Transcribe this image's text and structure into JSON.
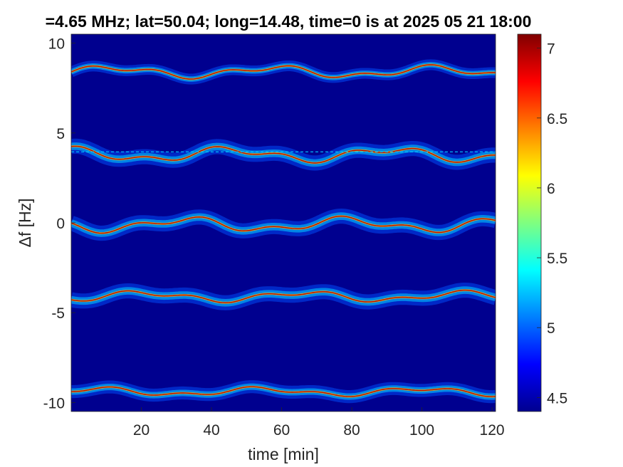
{
  "chart_data": {
    "type": "heatmap",
    "title": "=4.65 MHz;  lat=50.04; long=14.48, time=0 is at 2025 05 21 18:00",
    "xlabel": "time [min]",
    "ylabel": "Δf [Hz]",
    "xlim": [
      0,
      121
    ],
    "ylim": [
      -10.5,
      10.5
    ],
    "xticks": [
      20,
      40,
      60,
      80,
      100,
      120
    ],
    "yticks": [
      10,
      5,
      0,
      -5,
      -10
    ],
    "colorbar": {
      "clim": [
        4.4,
        7.1
      ],
      "ticks": [
        4.5,
        5,
        5.5,
        6,
        6.5,
        7
      ],
      "colormap": "jet"
    },
    "background_color": "#00008f",
    "reference_line": {
      "y": 3.95,
      "color": "#00c8ff",
      "style": "dashed"
    },
    "traces": [
      {
        "center": 8.4,
        "amplitude": 0.25,
        "spread": 0.25
      },
      {
        "center": 3.8,
        "amplitude": 0.3,
        "spread": 0.35
      },
      {
        "center": -0.1,
        "amplitude": 0.3,
        "spread": 0.35
      },
      {
        "center": -4.1,
        "amplitude": 0.22,
        "spread": 0.35
      },
      {
        "center": -9.4,
        "amplitude": 0.18,
        "spread": 0.3
      }
    ]
  }
}
